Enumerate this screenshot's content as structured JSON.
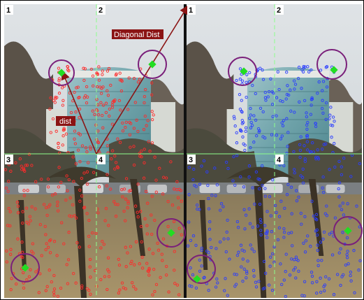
{
  "figure": {
    "left_panel": {
      "quadrants": [
        "1",
        "2",
        "3",
        "4"
      ],
      "annotations": {
        "diagonal": "Diagonal Dist",
        "dist": "dist"
      }
    },
    "right_panel": {
      "quadrants": [
        "1",
        "2",
        "3",
        "4"
      ]
    },
    "colors": {
      "left_keypoints": "#ff2a2a",
      "right_keypoints": "#2a3dff",
      "grid_lines": "#8cff8c",
      "circles": "#7a1f7a",
      "markers": "#22dd22",
      "arrows": "#8b1414"
    }
  }
}
